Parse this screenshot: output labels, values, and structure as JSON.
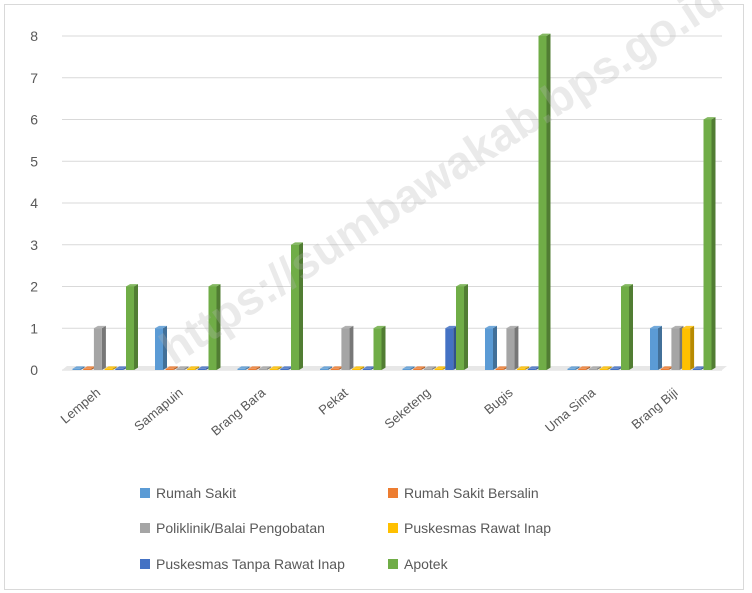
{
  "chart_data": {
    "type": "bar",
    "title": "",
    "xlabel": "",
    "ylabel": "",
    "ylim": [
      0,
      8
    ],
    "yticks": [
      0,
      1,
      2,
      3,
      4,
      5,
      6,
      7,
      8
    ],
    "grid": true,
    "legend_position": "bottom",
    "categories": [
      "Lempeh",
      "Samapuin",
      "Brang Bara",
      "Pekat",
      "Seketeng",
      "Bugis",
      "Uma Sima",
      "Brang Biji"
    ],
    "series": [
      {
        "name": "Rumah Sakit",
        "color": "#5b9bd5",
        "values": [
          0,
          1,
          0,
          0,
          0,
          1,
          0,
          1
        ]
      },
      {
        "name": "Rumah Sakit Bersalin",
        "color": "#ed7d31",
        "values": [
          0,
          0,
          0,
          0,
          0,
          0,
          0,
          0
        ]
      },
      {
        "name": "Poliklinik/Balai Pengobatan",
        "color": "#a5a5a5",
        "values": [
          1,
          0,
          0,
          1,
          0,
          1,
          0,
          1
        ]
      },
      {
        "name": "Puskesmas Rawat Inap",
        "color": "#ffc000",
        "values": [
          0,
          0,
          0,
          0,
          0,
          0,
          0,
          1
        ]
      },
      {
        "name": "Puskesmas Tanpa Rawat Inap",
        "color": "#4472c4",
        "values": [
          0,
          0,
          0,
          0,
          1,
          0,
          0,
          0
        ]
      },
      {
        "name": "Apotek",
        "color": "#70ad47",
        "values": [
          2,
          2,
          3,
          1,
          2,
          8,
          2,
          6
        ]
      }
    ]
  },
  "watermark": "https://sumbawakab.bps.go.id"
}
